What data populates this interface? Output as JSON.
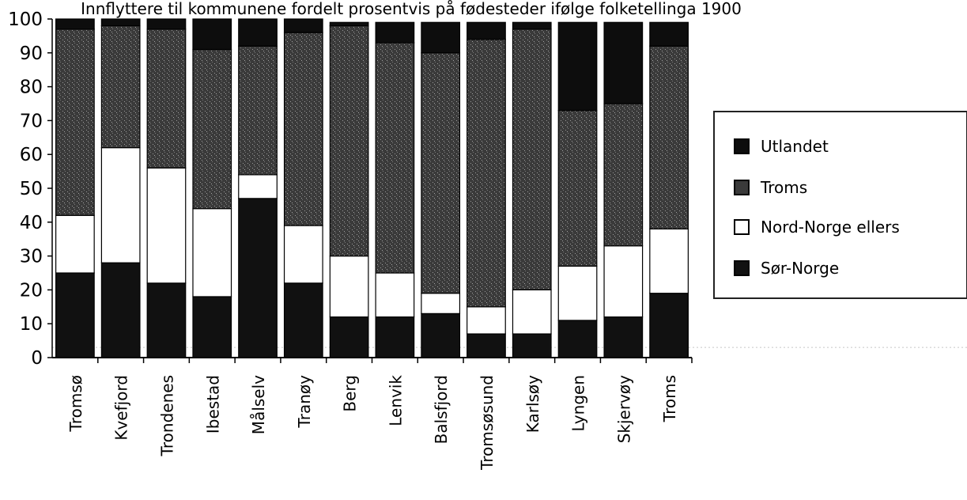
{
  "chart_data": {
    "type": "bar",
    "stacked": true,
    "title": "Innflyttere til kommunene fordelt prosentvis på fødesteder ifølge folketellinga 1900",
    "xlabel": "",
    "ylabel": "",
    "ylim": [
      0,
      100
    ],
    "yticks": [
      "0",
      "10",
      "20",
      "30",
      "40",
      "50",
      "60",
      "70",
      "80",
      "90",
      "100"
    ],
    "categories": [
      "Tromsø",
      "Kvefjord",
      "Trondenes",
      "Ibestad",
      "Målselv",
      "Tranøy",
      "Berg",
      "Lenvik",
      "Balsfjord",
      "Tromsøsund",
      "Karlsøy",
      "Lyngen",
      "Skjervøy",
      "Troms"
    ],
    "series": [
      {
        "name": "Sør-Norge",
        "values": [
          25,
          28,
          22,
          18,
          47,
          22,
          12,
          12,
          13,
          7,
          7,
          11,
          12,
          19
        ]
      },
      {
        "name": "Nord-Norge ellers",
        "values": [
          17,
          34,
          34,
          26,
          7,
          17,
          18,
          13,
          6,
          8,
          13,
          16,
          21,
          19
        ]
      },
      {
        "name": "Troms",
        "values": [
          55,
          36,
          41,
          47,
          38,
          57,
          68,
          68,
          71,
          79,
          77,
          46,
          42,
          54
        ]
      },
      {
        "name": "Utlandet",
        "values": [
          3,
          2,
          3,
          9,
          8,
          4,
          1,
          6,
          9,
          5,
          2,
          26,
          24,
          7
        ]
      }
    ],
    "grid": false,
    "legend_position": "right",
    "colors": {
      "Sør-Norge": "#111111",
      "Nord-Norge ellers": "#ffffff",
      "Troms": "#3a3a3a",
      "Utlandet": "#0d0d0d"
    }
  },
  "legend": [
    {
      "label": "Utlandet",
      "color": "#0d0d0d"
    },
    {
      "label": "Troms",
      "color": "#3a3a3a"
    },
    {
      "label": "Nord-Norge ellers",
      "color": "#ffffff"
    },
    {
      "label": "Sør-Norge",
      "color": "#111111"
    }
  ]
}
